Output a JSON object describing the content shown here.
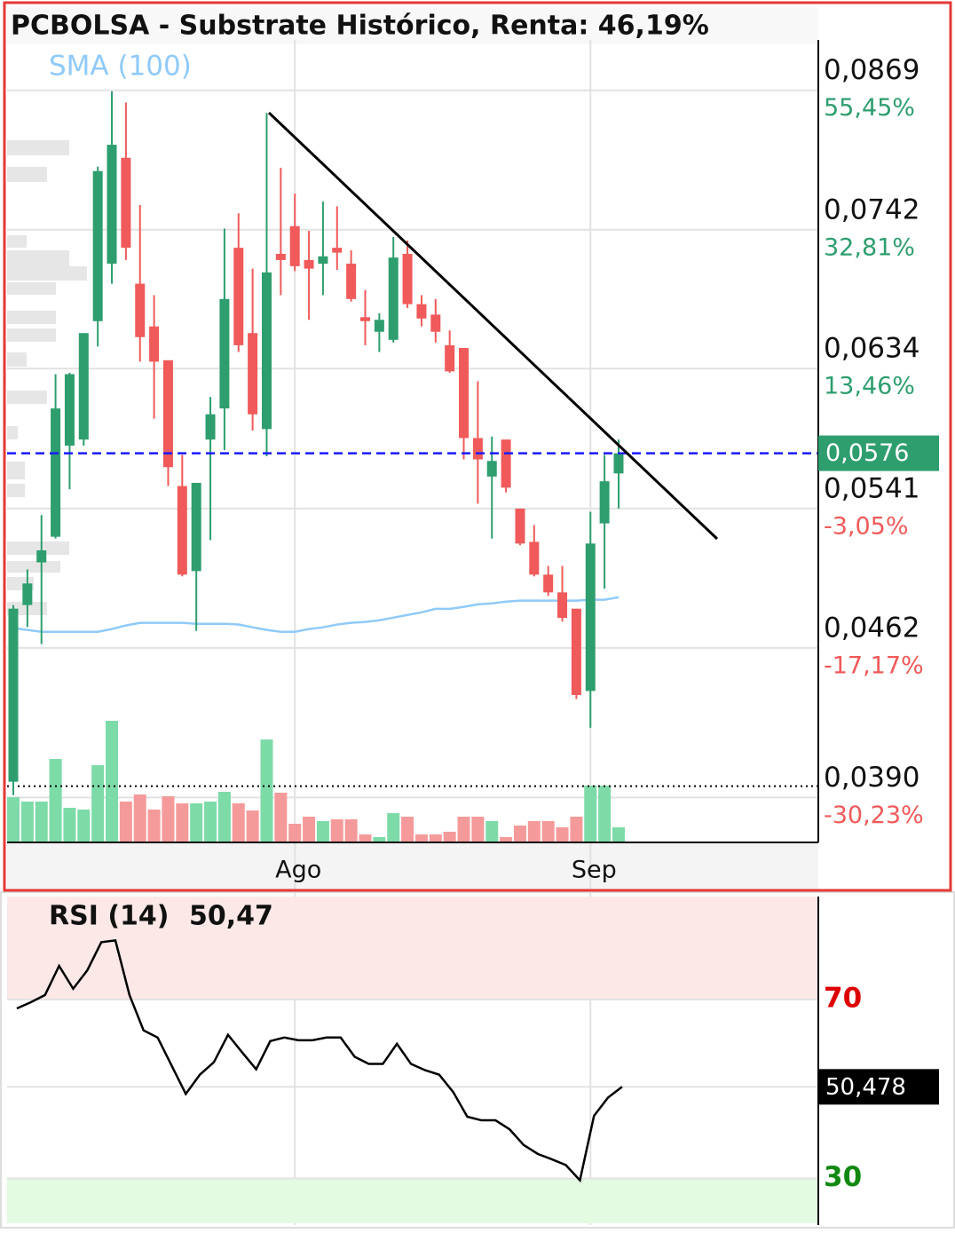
{
  "chart_data": [
    {
      "type": "candlestick",
      "title": "PCBOLSA - Substrate Histórico, Renta: 46,19%",
      "categories": [
        null,
        null,
        null,
        null,
        null,
        null,
        null,
        null,
        null,
        null,
        null,
        null,
        null,
        null,
        null,
        null,
        null,
        null,
        null,
        null,
        "Ago",
        null,
        null,
        null,
        null,
        null,
        null,
        null,
        null,
        null,
        null,
        null,
        null,
        null,
        null,
        null,
        null,
        null,
        null,
        null,
        null,
        "Sep",
        null,
        null
      ],
      "open": [
        0.0397,
        0.0485,
        0.0509,
        0.0524,
        0.0581,
        0.0585,
        0.0669,
        0.0714,
        0.0805,
        0.0698,
        0.0665,
        0.064,
        0.0555,
        0.0504,
        0.0585,
        0.0606,
        0.0727,
        0.066,
        0.0592,
        0.0722,
        0.0745,
        0.0717,
        0.0714,
        0.0727,
        0.0714,
        0.0672,
        0.0661,
        0.0655,
        0.0722,
        0.0682,
        0.0674,
        0.0651,
        0.0649,
        0.0586,
        0.0561,
        0.0585,
        0.0541,
        0.0521,
        0.0502,
        0.0492,
        0.0483,
        0.044,
        0.0532,
        0.0563
      ],
      "high": [
        0.0485,
        0.0505,
        0.0537,
        0.063,
        0.0631,
        0.066,
        0.0797,
        0.0868,
        0.0857,
        0.0763,
        0.0689,
        0.064,
        0.0575,
        0.0557,
        0.0614,
        0.0743,
        0.0756,
        0.071,
        0.0847,
        0.0796,
        0.0773,
        0.0741,
        0.0766,
        0.0762,
        0.0725,
        0.0693,
        0.0675,
        0.0736,
        0.0733,
        0.0689,
        0.0686,
        0.0662,
        0.0649,
        0.0625,
        0.0587,
        0.0585,
        0.0541,
        0.0531,
        0.0507,
        0.0507,
        0.0483,
        0.0539,
        0.0575,
        0.0585
      ],
      "low": [
        0.0391,
        0.0473,
        0.0464,
        0.0523,
        0.0553,
        0.0581,
        0.065,
        0.0698,
        0.0717,
        0.0639,
        0.0599,
        0.0555,
        0.0501,
        0.0471,
        0.0522,
        0.0578,
        0.0646,
        0.0591,
        0.0574,
        0.0689,
        0.0708,
        0.067,
        0.0689,
        0.0709,
        0.0684,
        0.0651,
        0.0646,
        0.0653,
        0.0679,
        0.0665,
        0.0653,
        0.0631,
        0.0572,
        0.0544,
        0.0523,
        0.0551,
        0.0519,
        0.0501,
        0.049,
        0.0476,
        0.0436,
        0.0422,
        0.0494,
        0.0541
      ],
      "close": [
        0.0483,
        0.0497,
        0.0516,
        0.0606,
        0.063,
        0.066,
        0.0793,
        0.0817,
        0.0727,
        0.0657,
        0.0639,
        0.0567,
        0.0502,
        0.0557,
        0.0602,
        0.0686,
        0.0651,
        0.0602,
        0.0707,
        0.0717,
        0.0712,
        0.071,
        0.072,
        0.0723,
        0.0686,
        0.0669,
        0.067,
        0.0719,
        0.0682,
        0.0671,
        0.0661,
        0.0632,
        0.0586,
        0.0572,
        0.0571,
        0.0554,
        0.052,
        0.0502,
        0.0492,
        0.0478,
        0.0438,
        0.052,
        0.0558,
        0.0576
      ],
      "volume": [
        50,
        45,
        45,
        93,
        38,
        36,
        86,
        136,
        45,
        53,
        36,
        51,
        43,
        43,
        45,
        56,
        43,
        35,
        115,
        55,
        20,
        28,
        23,
        25,
        25,
        8,
        5,
        32,
        28,
        8,
        8,
        11,
        28,
        28,
        23,
        5,
        18,
        23,
        23,
        16,
        28,
        63,
        63,
        16
      ],
      "up_color": "#2e9e6e",
      "down_color": "#f05a5a",
      "volume_up_color": "#7ddba8",
      "volume_down_color": "#f59a9a",
      "sma": {
        "name": "SMA (100)",
        "color": "#90caf9",
        "values": [
          0.04725,
          0.04715,
          0.04705,
          0.04705,
          0.04705,
          0.04705,
          0.04705,
          0.0472,
          0.04739,
          0.04753,
          0.04753,
          0.04753,
          0.04753,
          0.04748,
          0.04748,
          0.04748,
          0.04744,
          0.04729,
          0.04715,
          0.04705,
          0.04705,
          0.0472,
          0.04729,
          0.04744,
          0.04753,
          0.04758,
          0.04767,
          0.04781,
          0.04796,
          0.0481,
          0.04829,
          0.04829,
          0.0484,
          0.04854,
          0.04859,
          0.04869,
          0.04874,
          0.04874,
          0.04874,
          0.04874,
          0.04874,
          0.04879,
          0.04879,
          0.04893
        ]
      },
      "log_scale": true,
      "ylim": [
        0.092,
        0.0371
      ],
      "yticks": [
        {
          "value": 0.0869,
          "label": "0,0869"
        },
        {
          "value": 0.0742,
          "label": "0,0742"
        },
        {
          "value": 0.0634,
          "label": "0,0634"
        },
        {
          "value": 0.0541,
          "label": "0,0541"
        },
        {
          "value": 0.0462,
          "label": "0,0462"
        },
        {
          "value": 0.039,
          "label": "0,0390"
        }
      ],
      "y_change_labels": [
        "55,45%",
        "32,81%",
        "13,46%",
        "-3,05%",
        "-17,17%",
        "-30,23%"
      ],
      "last_price": {
        "value": 0.0576,
        "label": "0,0576"
      },
      "low_line": 0.0395,
      "grid": true
    },
    {
      "type": "line",
      "title": "RSI (14)",
      "value_label": "50,47",
      "color": "#000000",
      "values": [
        68.0,
        69.4,
        71.0,
        77.5,
        72.4,
        76.5,
        82.8,
        83.2,
        71.0,
        63.1,
        61.5,
        55.2,
        48.9,
        53.2,
        56.0,
        62.1,
        58.2,
        54.4,
        60.7,
        61.5,
        60.9,
        60.9,
        61.5,
        61.5,
        57.2,
        55.6,
        55.6,
        60.1,
        55.6,
        54.2,
        53.2,
        49.3,
        43.8,
        43.0,
        43.0,
        41.0,
        37.5,
        35.5,
        34.3,
        33.0,
        29.6,
        44.0,
        48.1,
        50.5
      ],
      "ylim": [
        20,
        93
      ],
      "yticks": [
        70,
        30
      ],
      "ytick_colors": [
        "#dd0000",
        "#118811"
      ],
      "zone_colors": [
        "#fde8e8",
        "#e3fbe0"
      ],
      "last_value": {
        "value": 50.478,
        "label": "50,478"
      }
    }
  ]
}
